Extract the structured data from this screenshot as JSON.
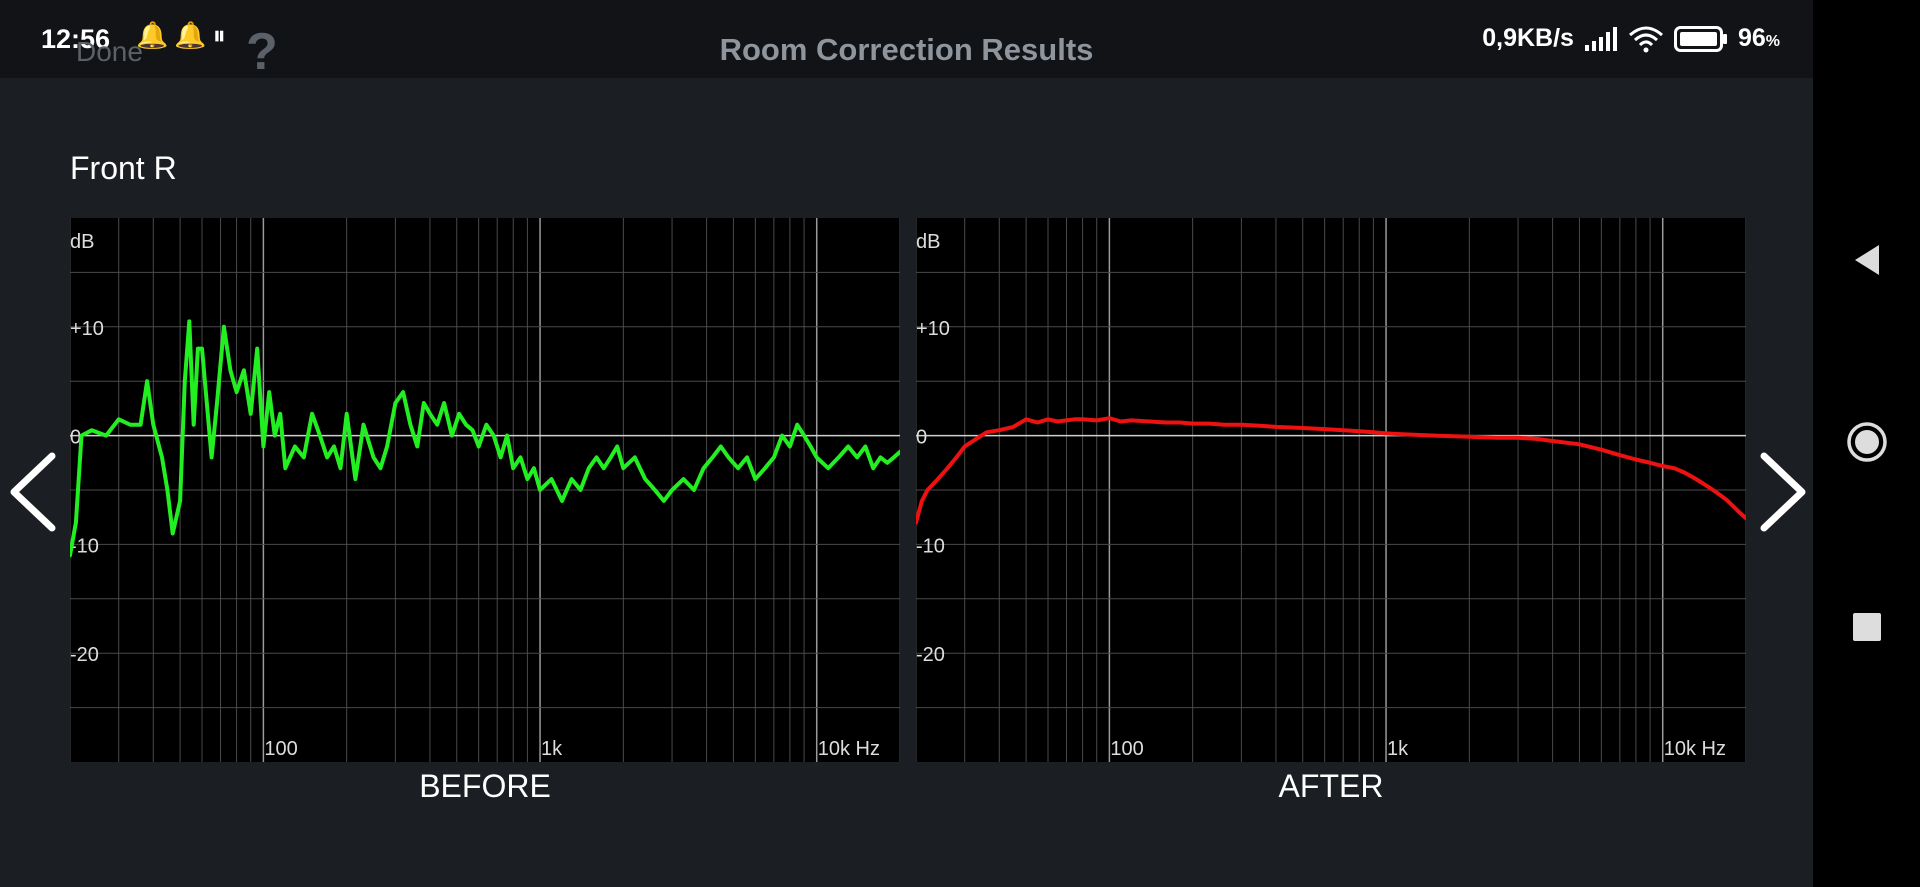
{
  "status_bar": {
    "time": "12:56",
    "network_speed": "0,9KB/s",
    "battery": "96",
    "battery_unit": "%"
  },
  "header": {
    "done_label": "Done",
    "help_label": "?",
    "title": "Room Correction Results"
  },
  "channel_name": "Front R",
  "colors": {
    "before": "#22ee22",
    "after": "#ee1111",
    "grid": "#4a4a4a",
    "panel": "#000000"
  },
  "chart_data": [
    {
      "type": "line",
      "caption": "BEFORE",
      "ylabel": "dB",
      "xunit": "Hz",
      "x_scale": "log",
      "xlim": [
        20,
        20000
      ],
      "ylim": [
        -30,
        20
      ],
      "y_ticks": [
        {
          "v": 10,
          "label": "+10"
        },
        {
          "v": 0,
          "label": "0"
        },
        {
          "v": -10,
          "label": "-10"
        },
        {
          "v": -20,
          "label": "-20"
        }
      ],
      "x_ticks": [
        {
          "v": 100,
          "label": "100"
        },
        {
          "v": 1000,
          "label": "1k"
        },
        {
          "v": 10000,
          "label": "10k Hz"
        }
      ],
      "grid": true,
      "series": [
        {
          "color": "#22ee22",
          "x": [
            20,
            21,
            22,
            24,
            27,
            30,
            33,
            36,
            38,
            40,
            43,
            45,
            47,
            50,
            52,
            54,
            56,
            58,
            60,
            65,
            68,
            72,
            76,
            80,
            85,
            90,
            95,
            100,
            105,
            110,
            115,
            120,
            130,
            140,
            150,
            160,
            170,
            180,
            190,
            200,
            215,
            230,
            250,
            265,
            280,
            300,
            320,
            340,
            360,
            380,
            400,
            425,
            450,
            480,
            510,
            540,
            570,
            600,
            640,
            680,
            720,
            760,
            800,
            850,
            900,
            950,
            1000,
            1100,
            1200,
            1300,
            1400,
            1500,
            1600,
            1700,
            1800,
            1900,
            2000,
            2200,
            2400,
            2600,
            2800,
            3000,
            3300,
            3600,
            3900,
            4200,
            4500,
            4800,
            5200,
            5600,
            6000,
            6500,
            7000,
            7500,
            8000,
            8500,
            9000,
            9500,
            10000,
            11000,
            12000,
            13000,
            14000,
            15000,
            16000,
            17000,
            18000,
            19000,
            20000
          ],
          "y": [
            -11,
            -8,
            0,
            0.5,
            0,
            1.5,
            1,
            1,
            5,
            1,
            -2,
            -5,
            -9,
            -6,
            5,
            10.5,
            1,
            8,
            8,
            -2,
            3,
            10,
            6,
            4,
            6,
            2,
            8,
            -1,
            4,
            0,
            2,
            -3,
            -1,
            -2,
            2,
            0,
            -2,
            -1,
            -3,
            2,
            -4,
            1,
            -2,
            -3,
            -1,
            3,
            4,
            1,
            -1,
            3,
            2,
            1,
            3,
            0,
            2,
            1,
            0.5,
            -1,
            1,
            0,
            -2,
            0,
            -3,
            -2,
            -4,
            -3,
            -5,
            -4,
            -6,
            -4,
            -5,
            -3,
            -2,
            -3,
            -2,
            -1,
            -3,
            -2,
            -4,
            -5,
            -6,
            -5,
            -4,
            -5,
            -3,
            -2,
            -1,
            -2,
            -3,
            -2,
            -4,
            -3,
            -2,
            0,
            -1,
            1,
            0,
            -1,
            -2,
            -3,
            -2,
            -1,
            -2,
            -1,
            -3,
            -2,
            -2.5,
            -2,
            -1.5
          ]
        }
      ]
    },
    {
      "type": "line",
      "caption": "AFTER",
      "ylabel": "dB",
      "xunit": "Hz",
      "x_scale": "log",
      "xlim": [
        20,
        20000
      ],
      "ylim": [
        -30,
        20
      ],
      "y_ticks": [
        {
          "v": 10,
          "label": "+10"
        },
        {
          "v": 0,
          "label": "0"
        },
        {
          "v": -10,
          "label": "-10"
        },
        {
          "v": -20,
          "label": "-20"
        }
      ],
      "x_ticks": [
        {
          "v": 100,
          "label": "100"
        },
        {
          "v": 1000,
          "label": "1k"
        },
        {
          "v": 10000,
          "label": "10k Hz"
        }
      ],
      "grid": true,
      "series": [
        {
          "color": "#ee1111",
          "x": [
            20,
            21,
            22,
            24,
            26,
            28,
            30,
            33,
            36,
            40,
            45,
            50,
            55,
            60,
            65,
            70,
            75,
            80,
            90,
            100,
            110,
            120,
            140,
            160,
            180,
            200,
            230,
            260,
            300,
            350,
            400,
            500,
            600,
            700,
            800,
            900,
            1000,
            1200,
            1500,
            2000,
            2500,
            3000,
            3500,
            4000,
            5000,
            6000,
            7000,
            8000,
            9000,
            10000,
            11000,
            12000,
            13000,
            14000,
            15000,
            16000,
            17000,
            18000,
            19000,
            20000
          ],
          "y": [
            -8,
            -6,
            -5,
            -4,
            -3,
            -2,
            -1,
            -0.3,
            0.3,
            0.5,
            0.8,
            1.5,
            1.2,
            1.5,
            1.3,
            1.4,
            1.5,
            1.5,
            1.4,
            1.6,
            1.3,
            1.4,
            1.3,
            1.2,
            1.2,
            1.1,
            1.1,
            1.0,
            1.0,
            0.9,
            0.8,
            0.7,
            0.6,
            0.5,
            0.4,
            0.3,
            0.2,
            0.1,
            0,
            -0.1,
            -0.2,
            -0.2,
            -0.3,
            -0.5,
            -0.8,
            -1.3,
            -1.8,
            -2.2,
            -2.5,
            -2.8,
            -3.0,
            -3.4,
            -3.9,
            -4.4,
            -4.9,
            -5.4,
            -5.9,
            -6.5,
            -7.1,
            -7.6
          ]
        }
      ]
    }
  ]
}
